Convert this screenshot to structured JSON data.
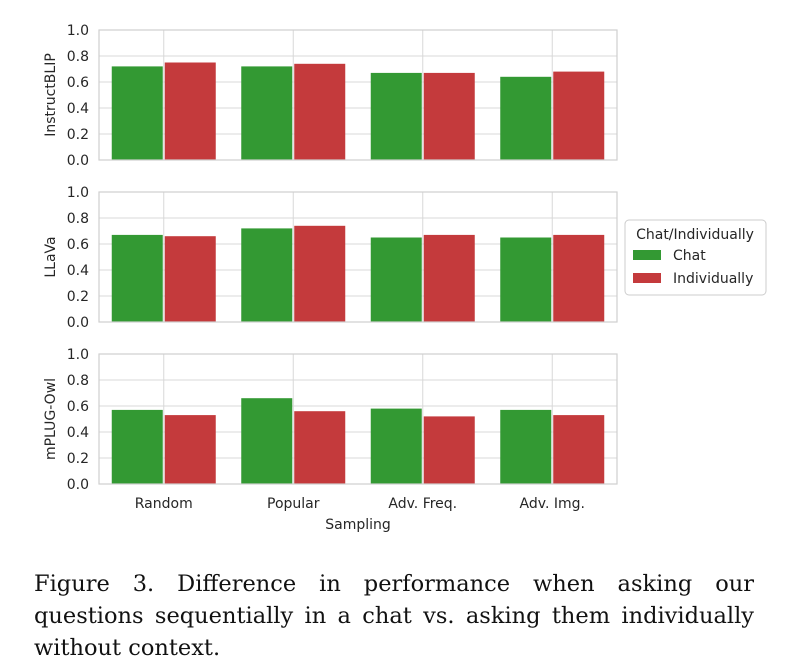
{
  "chart_data": {
    "type": "bar",
    "categories": [
      "Random",
      "Popular",
      "Adv. Freq.",
      "Adv. Img."
    ],
    "xlabel": "Sampling",
    "ylim": [
      0,
      1.0
    ],
    "yticks": [
      "0.0",
      "0.2",
      "0.4",
      "0.6",
      "0.8",
      "1.0"
    ],
    "grid": true,
    "legend": {
      "title": "Chat/Individually",
      "placement": "right",
      "entries": [
        "Chat",
        "Individually"
      ]
    },
    "series_colors": {
      "Chat": "#339933",
      "Individually": "#c43a3c"
    },
    "panels": [
      {
        "ylabel": "InstructBLIP",
        "series": [
          {
            "name": "Chat",
            "values": [
              0.72,
              0.72,
              0.67,
              0.64
            ]
          },
          {
            "name": "Individually",
            "values": [
              0.75,
              0.74,
              0.67,
              0.68
            ]
          }
        ]
      },
      {
        "ylabel": "LLaVa",
        "series": [
          {
            "name": "Chat",
            "values": [
              0.67,
              0.72,
              0.65,
              0.65
            ]
          },
          {
            "name": "Individually",
            "values": [
              0.66,
              0.74,
              0.67,
              0.67
            ]
          }
        ]
      },
      {
        "ylabel": "mPLUG-Owl",
        "series": [
          {
            "name": "Chat",
            "values": [
              0.57,
              0.66,
              0.58,
              0.57
            ]
          },
          {
            "name": "Individually",
            "values": [
              0.53,
              0.56,
              0.52,
              0.53
            ]
          }
        ]
      }
    ]
  },
  "caption": "Figure 3.  Difference in performance when asking our questions sequentially in a chat vs. asking them individually without context."
}
